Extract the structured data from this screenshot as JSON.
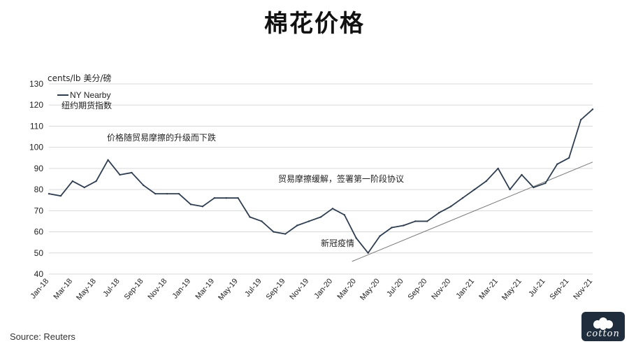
{
  "title": "棉花价格",
  "source": "Source: Reuters",
  "logo_text": "cotton",
  "colors": {
    "line": "#2e3d4f",
    "grid": "#d9d9d9",
    "trend": "#777777",
    "text": "#222222"
  },
  "chart_data": {
    "type": "line",
    "title": "棉花价格",
    "ylabel": "cents/lb 美分/磅",
    "ylim": [
      40,
      130
    ],
    "yticks": [
      40,
      50,
      60,
      70,
      80,
      90,
      100,
      110,
      120,
      130
    ],
    "xlim": [
      "2018-01",
      "2021-11"
    ],
    "xticks": [
      "Jan-18",
      "Mar-18",
      "May-18",
      "Jul-18",
      "Sep-18",
      "Nov-18",
      "Jan-19",
      "Mar-19",
      "May-19",
      "Jul-19",
      "Sep-19",
      "Nov-19",
      "Jan-20",
      "Mar-20",
      "May-20",
      "Jul-20",
      "Sep-20",
      "Nov-20",
      "Jan-21",
      "Mar-21",
      "May-21",
      "Jul-21",
      "Sep-21",
      "Nov-21"
    ],
    "legend": {
      "placement": "top-left",
      "label": "NY Nearby",
      "sublabel": "纽约期货指数"
    },
    "grid": true,
    "series": [
      {
        "name": "NY Nearby",
        "x": [
          "2018-01",
          "2018-02",
          "2018-03",
          "2018-04",
          "2018-05",
          "2018-06",
          "2018-07",
          "2018-08",
          "2018-09",
          "2018-10",
          "2018-11",
          "2018-12",
          "2019-01",
          "2019-02",
          "2019-03",
          "2019-04",
          "2019-05",
          "2019-06",
          "2019-07",
          "2019-08",
          "2019-09",
          "2019-10",
          "2019-11",
          "2019-12",
          "2020-01",
          "2020-02",
          "2020-03",
          "2020-04",
          "2020-05",
          "2020-06",
          "2020-07",
          "2020-08",
          "2020-09",
          "2020-10",
          "2020-11",
          "2020-12",
          "2021-01",
          "2021-02",
          "2021-03",
          "2021-04",
          "2021-05",
          "2021-06",
          "2021-07",
          "2021-08",
          "2021-09",
          "2021-10",
          "2021-11"
        ],
        "values": [
          78,
          77,
          84,
          81,
          84,
          94,
          87,
          88,
          82,
          78,
          78,
          78,
          73,
          72,
          76,
          76,
          76,
          67,
          65,
          60,
          59,
          63,
          65,
          67,
          71,
          68,
          57,
          50,
          58,
          62,
          63,
          65,
          65,
          69,
          72,
          76,
          80,
          84,
          90,
          80,
          87,
          81,
          83,
          92,
          95,
          113,
          118
        ]
      }
    ],
    "annotations": [
      {
        "text": "价格随贸易摩擦的升级而下跌"
      },
      {
        "text": "贸易摩擦缓解，签署第一阶段协议"
      },
      {
        "text": "新冠疫情"
      }
    ],
    "trendline": {
      "from": [
        "2020-03",
        46
      ],
      "to": [
        "2021-11",
        93
      ]
    }
  }
}
